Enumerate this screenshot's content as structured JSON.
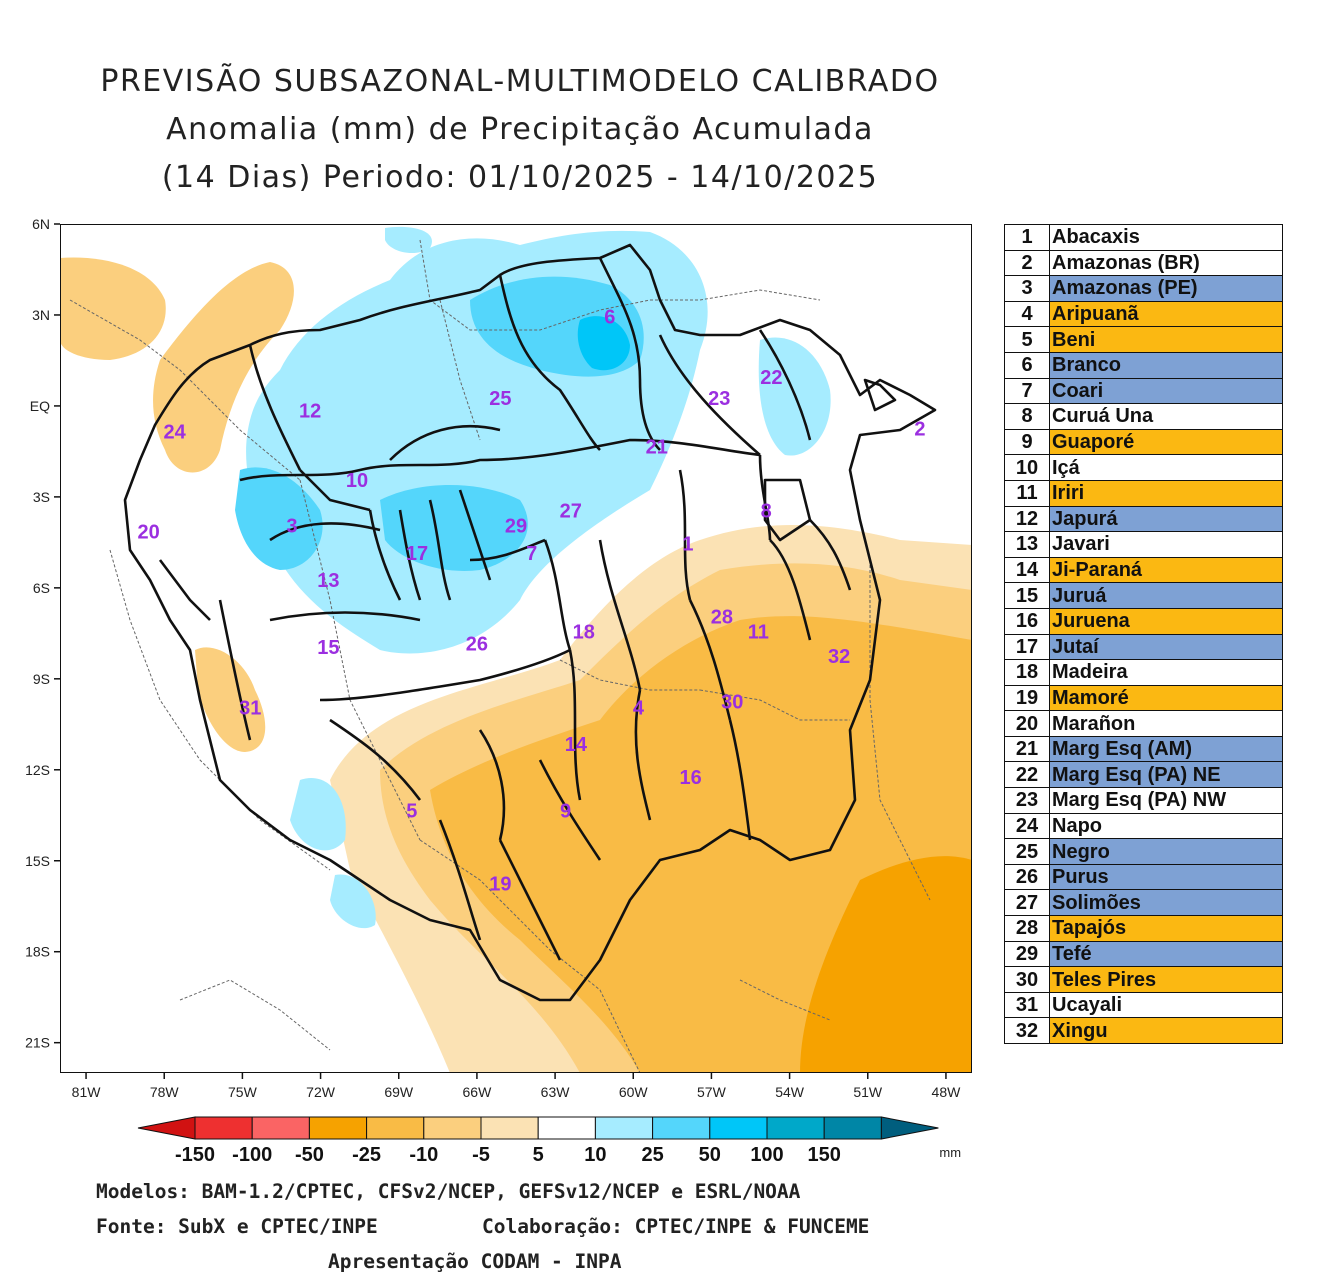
{
  "title": {
    "line1": "PREVISÃO SUBSAZONAL-MULTIMODELO CALIBRADO",
    "line2": "Anomalia (mm) de Precipitação Acumulada",
    "line3": "(14 Dias) Periodo: 01/10/2025 - 14/10/2025"
  },
  "map": {
    "lat_labels": [
      "6N",
      "3N",
      "EQ",
      "3S",
      "6S",
      "9S",
      "12S",
      "15S",
      "18S",
      "21S"
    ],
    "lon_labels": [
      "81W",
      "78W",
      "75W",
      "72W",
      "69W",
      "66W",
      "63W",
      "60W",
      "57W",
      "54W",
      "51W",
      "48W"
    ],
    "lat_range": [
      -22,
      6
    ],
    "lon_range": [
      -82,
      -47
    ],
    "basin_labels": [
      {
        "n": "1",
        "lat": -4.6,
        "lon": -57.9
      },
      {
        "n": "2",
        "lat": -0.8,
        "lon": -49.0
      },
      {
        "n": "3",
        "lat": -4.0,
        "lon": -73.1
      },
      {
        "n": "4",
        "lat": -10.0,
        "lon": -59.8
      },
      {
        "n": "5",
        "lat": -13.4,
        "lon": -68.5
      },
      {
        "n": "6",
        "lat": 2.9,
        "lon": -60.9
      },
      {
        "n": "7",
        "lat": -4.9,
        "lon": -63.9
      },
      {
        "n": "8",
        "lat": -3.5,
        "lon": -54.9
      },
      {
        "n": "9",
        "lat": -13.4,
        "lon": -62.6
      },
      {
        "n": "10",
        "lat": -2.5,
        "lon": -70.6
      },
      {
        "n": "11",
        "lat": -7.5,
        "lon": -55.2
      },
      {
        "n": "12",
        "lat": -0.2,
        "lon": -72.4
      },
      {
        "n": "13",
        "lat": -5.8,
        "lon": -71.7
      },
      {
        "n": "14",
        "lat": -11.2,
        "lon": -62.2
      },
      {
        "n": "15",
        "lat": -8.0,
        "lon": -71.7
      },
      {
        "n": "16",
        "lat": -12.3,
        "lon": -57.8
      },
      {
        "n": "17",
        "lat": -4.9,
        "lon": -68.3
      },
      {
        "n": "18",
        "lat": -7.5,
        "lon": -61.9
      },
      {
        "n": "19",
        "lat": -15.8,
        "lon": -65.1
      },
      {
        "n": "20",
        "lat": -4.2,
        "lon": -78.6
      },
      {
        "n": "21",
        "lat": -1.4,
        "lon": -59.1
      },
      {
        "n": "22",
        "lat": 0.9,
        "lon": -54.7
      },
      {
        "n": "23",
        "lat": 0.2,
        "lon": -56.7
      },
      {
        "n": "24",
        "lat": -0.9,
        "lon": -77.6
      },
      {
        "n": "25",
        "lat": 0.2,
        "lon": -65.1
      },
      {
        "n": "26",
        "lat": -7.9,
        "lon": -66.0
      },
      {
        "n": "27",
        "lat": -3.5,
        "lon": -62.4
      },
      {
        "n": "28",
        "lat": -7.0,
        "lon": -56.6
      },
      {
        "n": "29",
        "lat": -4.0,
        "lon": -64.5
      },
      {
        "n": "30",
        "lat": -9.8,
        "lon": -56.2
      },
      {
        "n": "31",
        "lat": -10.0,
        "lon": -74.7
      },
      {
        "n": "32",
        "lat": -8.3,
        "lon": -52.1
      }
    ]
  },
  "colorbar": {
    "labels": [
      "-150",
      "-100",
      "-50",
      "-25",
      "-10",
      "-5",
      "5",
      "10",
      "25",
      "50",
      "100",
      "150"
    ],
    "unit": "mm",
    "colors": [
      "#d11212",
      "#ee3030",
      "#fa6464",
      "#f6a200",
      "#f9bb45",
      "#fbcf7e",
      "#fbe2b4",
      "#ffffff",
      "#a6ecff",
      "#54d6fb",
      "#00c6f8",
      "#00a8c9",
      "#0086a6",
      "#005e7e"
    ]
  },
  "legend": [
    {
      "n": "1",
      "name": "Abacaxis",
      "color": "#ffffff"
    },
    {
      "n": "2",
      "name": "Amazonas (BR)",
      "color": "#ffffff"
    },
    {
      "n": "3",
      "name": "Amazonas (PE)",
      "color": "#7ea1d4"
    },
    {
      "n": "4",
      "name": "Aripuanã",
      "color": "#fbb812"
    },
    {
      "n": "5",
      "name": "Beni",
      "color": "#fbb812"
    },
    {
      "n": "6",
      "name": "Branco",
      "color": "#7ea1d4"
    },
    {
      "n": "7",
      "name": "Coari",
      "color": "#7ea1d4"
    },
    {
      "n": "8",
      "name": "Curuá Una",
      "color": "#ffffff"
    },
    {
      "n": "9",
      "name": "Guaporé",
      "color": "#fbb812"
    },
    {
      "n": "10",
      "name": "Içá",
      "color": "#ffffff"
    },
    {
      "n": "11",
      "name": "Iriri",
      "color": "#fbb812"
    },
    {
      "n": "12",
      "name": "Japurá",
      "color": "#7ea1d4"
    },
    {
      "n": "13",
      "name": "Javari",
      "color": "#ffffff"
    },
    {
      "n": "14",
      "name": "Ji-Paraná",
      "color": "#fbb812"
    },
    {
      "n": "15",
      "name": "Juruá",
      "color": "#7ea1d4"
    },
    {
      "n": "16",
      "name": "Juruena",
      "color": "#fbb812"
    },
    {
      "n": "17",
      "name": "Jutaí",
      "color": "#7ea1d4"
    },
    {
      "n": "18",
      "name": "Madeira",
      "color": "#ffffff"
    },
    {
      "n": "19",
      "name": "Mamoré",
      "color": "#fbb812"
    },
    {
      "n": "20",
      "name": "Marañon",
      "color": "#ffffff"
    },
    {
      "n": "21",
      "name": "Marg Esq (AM)",
      "color": "#7ea1d4"
    },
    {
      "n": "22",
      "name": "Marg Esq (PA) NE",
      "color": "#7ea1d4"
    },
    {
      "n": "23",
      "name": "Marg Esq (PA) NW",
      "color": "#ffffff"
    },
    {
      "n": "24",
      "name": "Napo",
      "color": "#ffffff"
    },
    {
      "n": "25",
      "name": "Negro",
      "color": "#7ea1d4"
    },
    {
      "n": "26",
      "name": "Purus",
      "color": "#7ea1d4"
    },
    {
      "n": "27",
      "name": "Solimões",
      "color": "#7ea1d4"
    },
    {
      "n": "28",
      "name": "Tapajós",
      "color": "#fbb812"
    },
    {
      "n": "29",
      "name": "Tefé",
      "color": "#7ea1d4"
    },
    {
      "n": "30",
      "name": "Teles Pires",
      "color": "#fbb812"
    },
    {
      "n": "31",
      "name": "Ucayali",
      "color": "#ffffff"
    },
    {
      "n": "32",
      "name": "Xingu",
      "color": "#fbb812"
    }
  ],
  "credits": {
    "models": "Modelos: BAM-1.2/CPTEC, CFSv2/NCEP, GEFSv12/NCEP e ESRL/NOAA",
    "source": "Fonte: SubX e CPTEC/INPE",
    "collab": "Colaboração: CPTEC/INPE & FUNCEME",
    "presentation": "Apresentação CODAM - INPA"
  },
  "colors": {
    "basin_label": "#9b2fe0",
    "boundary": "#111111",
    "border_dash": "#666666",
    "wet_light": "#a6ecff",
    "wet_mid": "#54d6fb",
    "dry_light": "#fbe2b4",
    "dry_mid": "#fbcf7e",
    "dry_strong": "#f9bb45",
    "dry_max": "#f6a200"
  }
}
